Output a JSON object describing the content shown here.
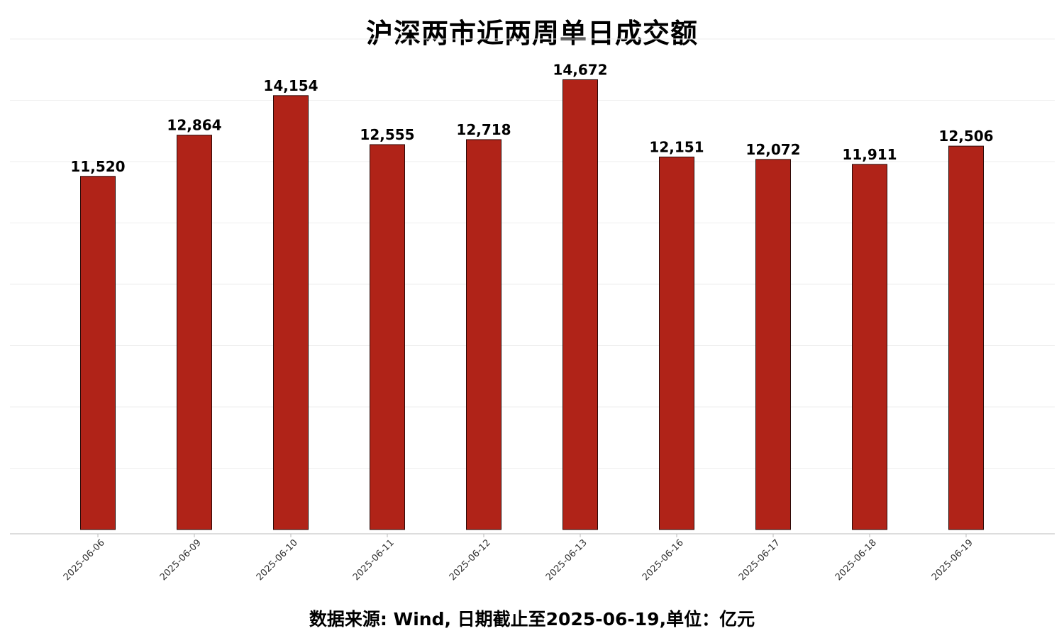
{
  "chart_data": {
    "type": "bar",
    "title": "沪深两市近两周单日成交额",
    "footnote": "数据来源: Wind, 日期截止至2025-06-19,单位：亿元",
    "categories": [
      "2025-06-06",
      "2025-06-09",
      "2025-06-10",
      "2025-06-11",
      "2025-06-12",
      "2025-06-13",
      "2025-06-16",
      "2025-06-17",
      "2025-06-18",
      "2025-06-19"
    ],
    "values": [
      11520,
      12864,
      14154,
      12555,
      12718,
      14672,
      12151,
      12072,
      11911,
      12506
    ],
    "value_labels": [
      "11,520",
      "12,864",
      "14,154",
      "12,555",
      "12,718",
      "14,672",
      "12,151",
      "12,072",
      "11,911",
      "12,506"
    ],
    "ylim": [
      0,
      16000
    ],
    "xlabel": "",
    "ylabel": "",
    "grid": true,
    "legend": "none",
    "colors": {
      "bar": "#b02318",
      "bar_edge": "#2a0a08",
      "grid": "#eeeeee",
      "axis": "#bbbbbb"
    }
  }
}
